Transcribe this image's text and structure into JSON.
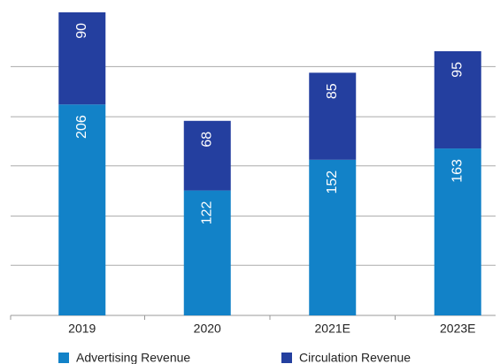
{
  "chart_data": {
    "type": "stacked_bar",
    "categories": [
      "2019",
      "2020",
      "2021E",
      "2023E"
    ],
    "series": [
      {
        "name": "Advertising Revenue",
        "color": "#1282c8",
        "values": [
          206,
          122,
          152,
          163
        ]
      },
      {
        "name": "Circulation Revenue",
        "color": "#243f9f",
        "values": [
          90,
          68,
          85,
          95
        ]
      }
    ],
    "ylim": [
      0,
      300
    ],
    "yticks": [
      0,
      49,
      97,
      146,
      194,
      243
    ],
    "grid": true
  }
}
